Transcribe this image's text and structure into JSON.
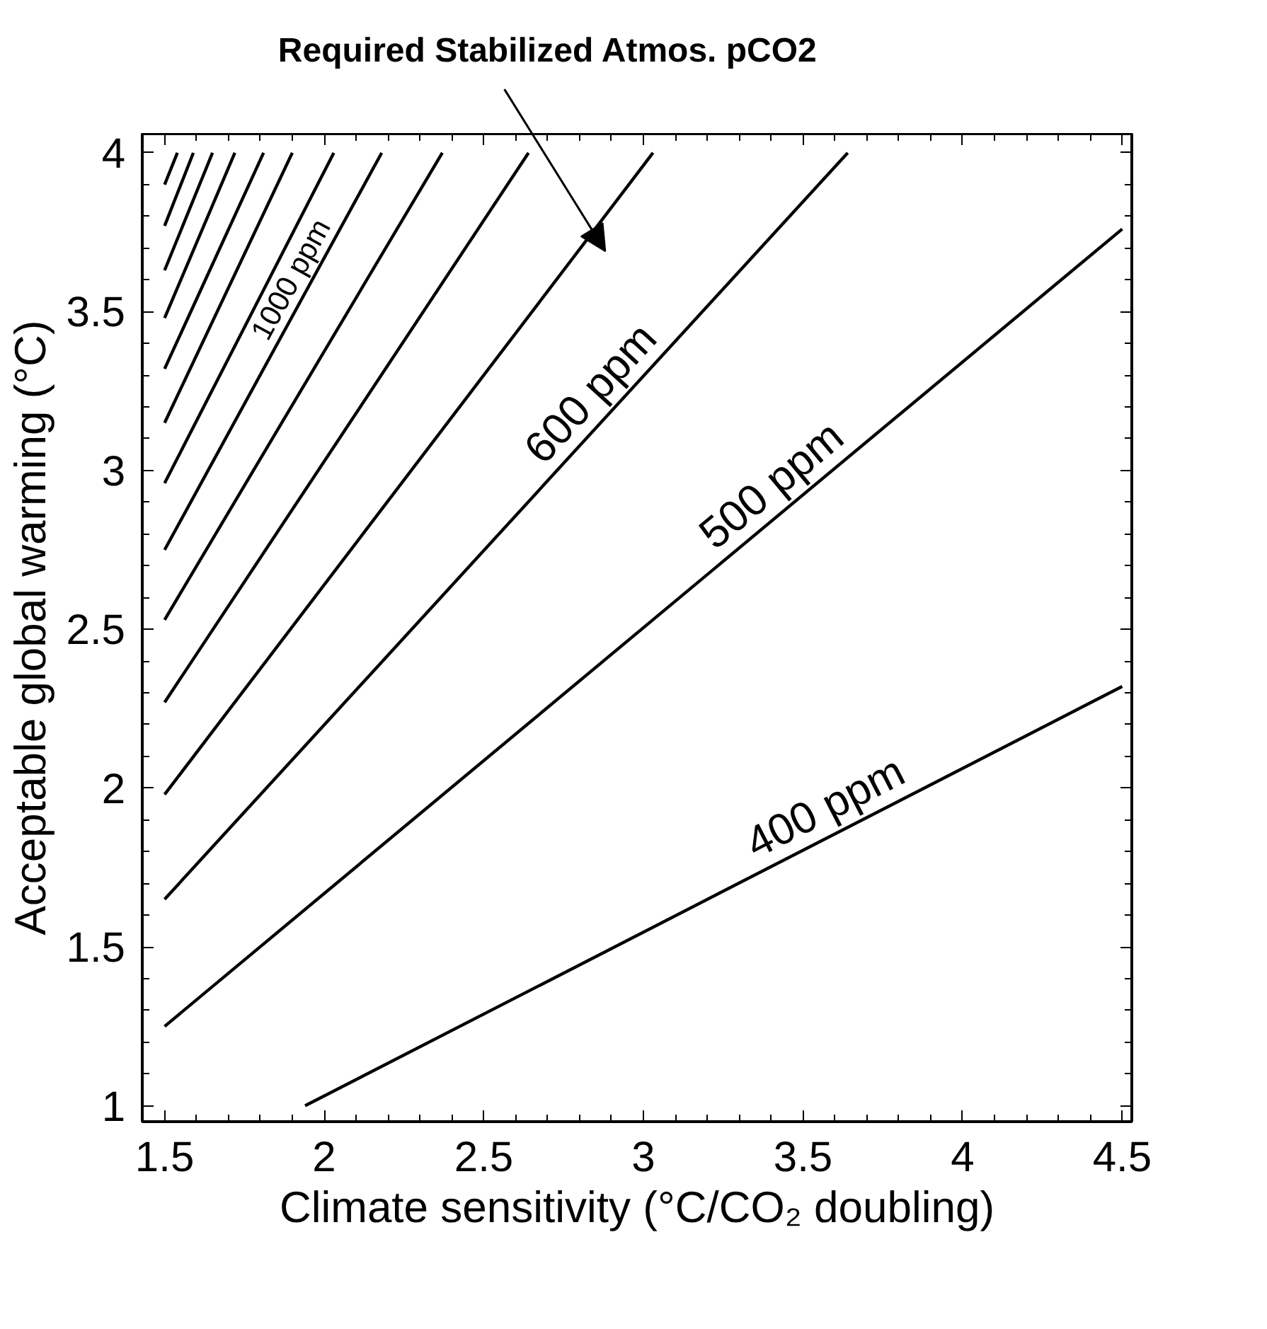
{
  "chart_data": {
    "type": "line",
    "xlabel": "Climate sensitivity (°C/CO₂ doubling)",
    "ylabel": "Acceptable global warming (°C)",
    "annotations": [
      "Required Stabilized Atmos. pCO2"
    ],
    "xlim": [
      1.43,
      4.53
    ],
    "ylim": [
      0.95,
      4.06
    ],
    "xticks": [
      1.5,
      2,
      2.5,
      3,
      3.5,
      4,
      4.5
    ],
    "yticks": [
      1,
      1.5,
      2,
      2.5,
      3,
      3.5,
      4
    ],
    "grid": false,
    "legend": false,
    "marker": "none",
    "line_style": "solid",
    "series": [
      {
        "name": "400 ppm",
        "color": "#000000",
        "x": [
          1.94,
          4.5
        ],
        "values": [
          1,
          2.32
        ]
      },
      {
        "name": "500 ppm",
        "color": "#000000",
        "x": [
          1.5,
          4.5
        ],
        "values": [
          1.25,
          3.76
        ]
      },
      {
        "name": "600 ppm",
        "color": "#000000",
        "x": [
          1.5,
          3.64
        ],
        "values": [
          1.65,
          4
        ]
      },
      {
        "color": "#000000",
        "x": [
          1.5,
          3.03
        ],
        "values": [
          1.98,
          4
        ]
      },
      {
        "color": "#000000",
        "x": [
          1.5,
          2.64
        ],
        "values": [
          2.27,
          4
        ]
      },
      {
        "color": "#000000",
        "x": [
          1.5,
          2.37
        ],
        "values": [
          2.53,
          4
        ]
      },
      {
        "name": "1000 ppm",
        "color": "#000000",
        "x": [
          1.5,
          2.18
        ],
        "values": [
          2.75,
          4
        ]
      },
      {
        "color": "#000000",
        "x": [
          1.5,
          2.03
        ],
        "values": [
          2.96,
          4
        ]
      },
      {
        "color": "#000000",
        "x": [
          1.5,
          1.9
        ],
        "values": [
          3.15,
          4
        ]
      },
      {
        "color": "#000000",
        "x": [
          1.5,
          1.81
        ],
        "values": [
          3.32,
          4
        ]
      },
      {
        "color": "#000000",
        "x": [
          1.5,
          1.72
        ],
        "values": [
          3.48,
          4
        ]
      },
      {
        "color": "#000000",
        "x": [
          1.5,
          1.65
        ],
        "values": [
          3.63,
          4
        ]
      },
      {
        "color": "#000000",
        "x": [
          1.5,
          1.59
        ],
        "values": [
          3.77,
          4
        ]
      },
      {
        "color": "#000000",
        "x": [
          1.5,
          1.54
        ],
        "values": [
          3.9,
          4
        ]
      }
    ]
  }
}
